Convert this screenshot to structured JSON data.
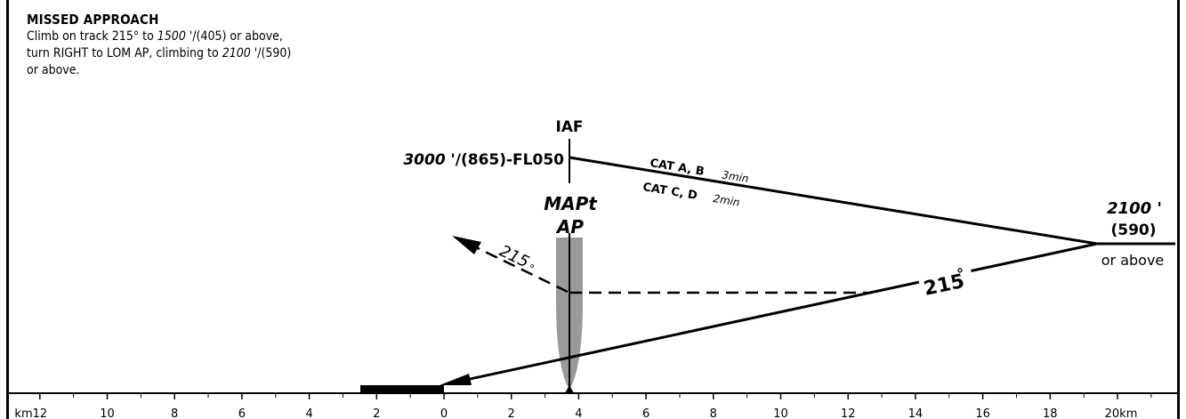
{
  "missed_approach": {
    "title": "MISSED APPROACH",
    "line1_a": "Climb on track 215° to ",
    "line1_alt": "1500 '",
    "line1_b": "/(405) or above,",
    "line2_a": "turn RIGHT to LOM AP, climbing to ",
    "line2_alt": "2100 '",
    "line2_b": "/(590)",
    "line3": "or above."
  },
  "labels": {
    "iaf": "IAF",
    "iaf_alt_italic": "3000 '",
    "iaf_alt_rest": "/(865)-FL050",
    "cat_ab": "CAT A, B",
    "cat_ab_time": "3min",
    "cat_cd": "CAT C, D",
    "cat_cd_time": "2min",
    "mapt": "MAPt",
    "ap": "AP",
    "missed_track": "215",
    "missed_track_unit": "°",
    "inbound_track": "215",
    "inbound_track_unit": "°",
    "right_alt": "2100 '",
    "right_alt_agl": "(590)",
    "right_alt_note": "or above"
  },
  "scale": {
    "tick_labels": [
      "km12",
      "10",
      "8",
      "6",
      "4",
      "2",
      "0",
      "2",
      "4",
      "6",
      "8",
      "10",
      "12",
      "14",
      "16",
      "18",
      "20km"
    ],
    "tick_values": [
      -12,
      -10,
      -8,
      -6,
      -4,
      -2,
      0,
      2,
      4,
      6,
      8,
      10,
      12,
      14,
      16,
      18,
      20
    ]
  },
  "colors": {
    "ink": "#000000",
    "shade": "#9a9a9a"
  }
}
